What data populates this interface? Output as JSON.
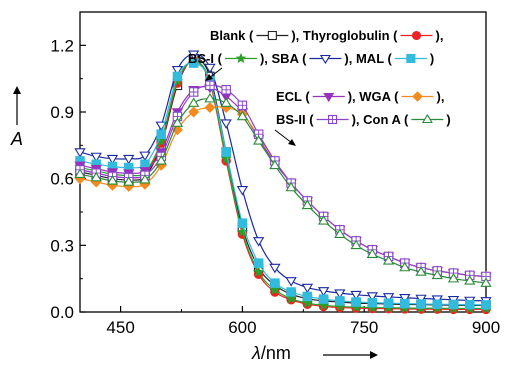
{
  "chart_data": {
    "type": "line",
    "ylabel": "A",
    "xlabel_symbol": "λ",
    "xlabel_unit": "/nm",
    "xlim": [
      400,
      900
    ],
    "ylim": [
      0.0,
      1.35
    ],
    "xticks": [
      450,
      600,
      750,
      900
    ],
    "xtick_labels": [
      "450",
      "600",
      "750",
      "900"
    ],
    "yticks": [
      0.0,
      0.3,
      0.6,
      0.9,
      1.2
    ],
    "ytick_labels": [
      "0.0",
      "0.3",
      "0.6",
      "0.9",
      "1.2"
    ],
    "grid": false,
    "legend": {
      "group1": [
        [
          "Blank (",
          "), Thyroglobulin (",
          "),"
        ],
        [
          "BS-I (",
          "), SBA (",
          "), MAL (",
          ")"
        ]
      ],
      "group2": [
        [
          "ECL (",
          "), WGA (",
          "),"
        ],
        [
          "BS-II (",
          "), Con A (",
          ")"
        ]
      ]
    },
    "series": [
      {
        "name": "Blank",
        "color": "#222222",
        "marker": "square-open",
        "x": [
          400,
          420,
          440,
          460,
          480,
          500,
          520,
          540,
          560,
          580,
          600,
          620,
          640,
          660,
          680,
          700,
          720,
          740,
          760,
          780,
          800,
          820,
          840,
          860,
          880,
          900
        ],
        "y": [
          0.63,
          0.615,
          0.6,
          0.595,
          0.61,
          0.75,
          1.02,
          1.14,
          1.06,
          0.72,
          0.38,
          0.2,
          0.12,
          0.08,
          0.06,
          0.05,
          0.045,
          0.04,
          0.038,
          0.036,
          0.034,
          0.033,
          0.032,
          0.031,
          0.03,
          0.03
        ]
      },
      {
        "name": "Thyroglobulin",
        "color": "#ee2222",
        "marker": "circle-filled",
        "x": [
          400,
          420,
          440,
          460,
          480,
          500,
          520,
          540,
          560,
          580,
          600,
          620,
          640,
          660,
          680,
          700,
          720,
          740,
          760,
          780,
          800,
          820,
          840,
          860,
          880,
          900
        ],
        "y": [
          0.64,
          0.625,
          0.61,
          0.605,
          0.62,
          0.76,
          1.03,
          1.13,
          1.03,
          0.68,
          0.35,
          0.17,
          0.09,
          0.055,
          0.035,
          0.025,
          0.02,
          0.018,
          0.016,
          0.015,
          0.014,
          0.013,
          0.013,
          0.012,
          0.012,
          0.012
        ]
      },
      {
        "name": "BS-I",
        "color": "#2aa02a",
        "marker": "star-filled",
        "x": [
          400,
          420,
          440,
          460,
          480,
          500,
          520,
          540,
          560,
          580,
          600,
          620,
          640,
          660,
          680,
          700,
          720,
          740,
          760,
          780,
          800,
          820,
          840,
          860,
          880,
          900
        ],
        "y": [
          0.65,
          0.635,
          0.62,
          0.615,
          0.63,
          0.77,
          1.04,
          1.13,
          1.04,
          0.69,
          0.36,
          0.18,
          0.1,
          0.06,
          0.04,
          0.03,
          0.025,
          0.022,
          0.02,
          0.019,
          0.018,
          0.017,
          0.017,
          0.016,
          0.016,
          0.016
        ]
      },
      {
        "name": "SBA",
        "color": "#1a2aa0",
        "marker": "triangle-down-open",
        "x": [
          400,
          420,
          440,
          460,
          480,
          500,
          520,
          540,
          560,
          580,
          600,
          620,
          640,
          660,
          680,
          700,
          720,
          740,
          760,
          780,
          800,
          820,
          840,
          860,
          880,
          900
        ],
        "y": [
          0.72,
          0.7,
          0.69,
          0.69,
          0.705,
          0.84,
          1.09,
          1.16,
          1.1,
          0.85,
          0.55,
          0.32,
          0.2,
          0.14,
          0.11,
          0.095,
          0.085,
          0.078,
          0.072,
          0.068,
          0.064,
          0.061,
          0.058,
          0.055,
          0.052,
          0.05
        ]
      },
      {
        "name": "MAL",
        "color": "#33bbdd",
        "marker": "square-filled",
        "x": [
          400,
          420,
          440,
          460,
          480,
          500,
          520,
          540,
          560,
          580,
          600,
          620,
          640,
          660,
          680,
          700,
          720,
          740,
          760,
          780,
          800,
          820,
          840,
          860,
          880,
          900
        ],
        "y": [
          0.68,
          0.665,
          0.655,
          0.65,
          0.665,
          0.8,
          1.06,
          1.12,
          1.04,
          0.72,
          0.4,
          0.22,
          0.13,
          0.09,
          0.07,
          0.058,
          0.05,
          0.045,
          0.042,
          0.04,
          0.038,
          0.036,
          0.035,
          0.034,
          0.033,
          0.032
        ]
      },
      {
        "name": "ECL",
        "color": "#9933bb",
        "marker": "triangle-down-filled",
        "x": [
          400,
          420,
          440,
          460,
          480,
          500,
          520,
          540,
          560,
          580,
          600,
          620,
          640,
          660,
          680,
          700,
          720,
          740,
          760,
          780,
          800,
          820,
          840,
          860,
          880,
          900
        ],
        "y": [
          0.66,
          0.645,
          0.63,
          0.625,
          0.635,
          0.72,
          0.9,
          1.0,
          1.01,
          0.97,
          0.9,
          0.78,
          0.67,
          0.58,
          0.5,
          0.43,
          0.37,
          0.32,
          0.28,
          0.25,
          0.22,
          0.2,
          0.185,
          0.175,
          0.165,
          0.16
        ]
      },
      {
        "name": "WGA",
        "color": "#f28a1e",
        "marker": "diamond-filled",
        "x": [
          400,
          420,
          440,
          460,
          480,
          500,
          520,
          540,
          560,
          580,
          600,
          620,
          640,
          660,
          680,
          700,
          720,
          740,
          760,
          780,
          800,
          820,
          840,
          860,
          880,
          900
        ],
        "y": [
          0.6,
          0.585,
          0.57,
          0.565,
          0.575,
          0.66,
          0.82,
          0.9,
          0.92,
          0.92,
          0.89,
          0.79,
          0.68,
          0.58,
          0.5,
          0.43,
          0.37,
          0.32,
          0.28,
          0.25,
          0.22,
          0.2,
          0.185,
          0.175,
          0.165,
          0.16
        ]
      },
      {
        "name": "BS-II",
        "color": "#8844cc",
        "marker": "square-cross-open",
        "x": [
          400,
          420,
          440,
          460,
          480,
          500,
          520,
          540,
          560,
          580,
          600,
          620,
          640,
          660,
          680,
          700,
          720,
          740,
          760,
          780,
          800,
          820,
          840,
          860,
          880,
          900
        ],
        "y": [
          0.64,
          0.625,
          0.61,
          0.605,
          0.615,
          0.7,
          0.88,
          0.99,
          1.02,
          1.0,
          0.93,
          0.8,
          0.68,
          0.58,
          0.5,
          0.43,
          0.37,
          0.32,
          0.28,
          0.25,
          0.22,
          0.2,
          0.185,
          0.175,
          0.165,
          0.16
        ]
      },
      {
        "name": "Con A",
        "color": "#2a8a3a",
        "marker": "triangle-up-open",
        "x": [
          400,
          420,
          440,
          460,
          480,
          500,
          520,
          540,
          560,
          580,
          600,
          620,
          640,
          660,
          680,
          700,
          720,
          740,
          760,
          780,
          800,
          820,
          840,
          860,
          880,
          900
        ],
        "y": [
          0.62,
          0.605,
          0.59,
          0.585,
          0.595,
          0.68,
          0.85,
          0.94,
          0.96,
          0.94,
          0.88,
          0.77,
          0.66,
          0.56,
          0.48,
          0.41,
          0.35,
          0.3,
          0.26,
          0.23,
          0.2,
          0.18,
          0.165,
          0.15,
          0.14,
          0.13
        ]
      }
    ]
  }
}
